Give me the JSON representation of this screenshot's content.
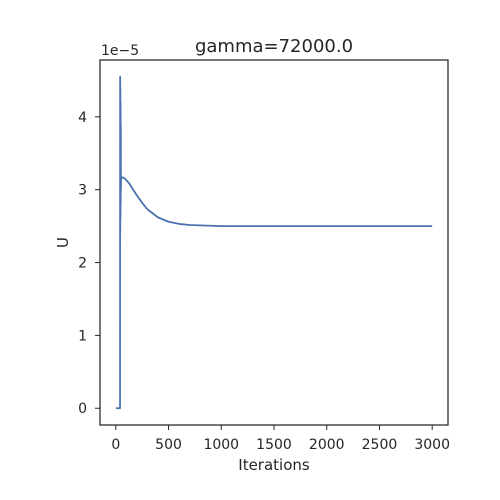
{
  "chart_data": {
    "type": "line",
    "title": "gamma=72000.0",
    "xlabel": "Iterations",
    "ylabel": "U",
    "y_offset_label": "1e−5",
    "xlim": [
      -150,
      3150
    ],
    "ylim": [
      -0.23,
      4.78
    ],
    "y_scale_factor": 1e-05,
    "x_ticks": [
      0,
      500,
      1000,
      1500,
      2000,
      2500,
      3000
    ],
    "y_ticks": [
      0,
      1,
      2,
      3,
      4
    ],
    "grid": false,
    "line_color": "#4c72b0",
    "series": [
      {
        "x": [
          0,
          10,
          20,
          30,
          35,
          38,
          40,
          41,
          42,
          43,
          44,
          45,
          46,
          47,
          48,
          50,
          60,
          80,
          100,
          130,
          160,
          200,
          250,
          300,
          400,
          500,
          600,
          700,
          800,
          900,
          1000,
          1200,
          1500,
          2000,
          2500,
          3000
        ],
        "values": [
          0,
          0,
          0,
          0,
          0,
          0,
          0,
          4.55,
          2.4,
          4.4,
          2.6,
          4.2,
          2.8,
          3.9,
          3.0,
          3.15,
          3.17,
          3.16,
          3.13,
          3.08,
          3.01,
          2.92,
          2.82,
          2.73,
          2.62,
          2.56,
          2.53,
          2.515,
          2.51,
          2.505,
          2.5,
          2.5,
          2.5,
          2.5,
          2.5,
          2.5
        ]
      }
    ]
  }
}
